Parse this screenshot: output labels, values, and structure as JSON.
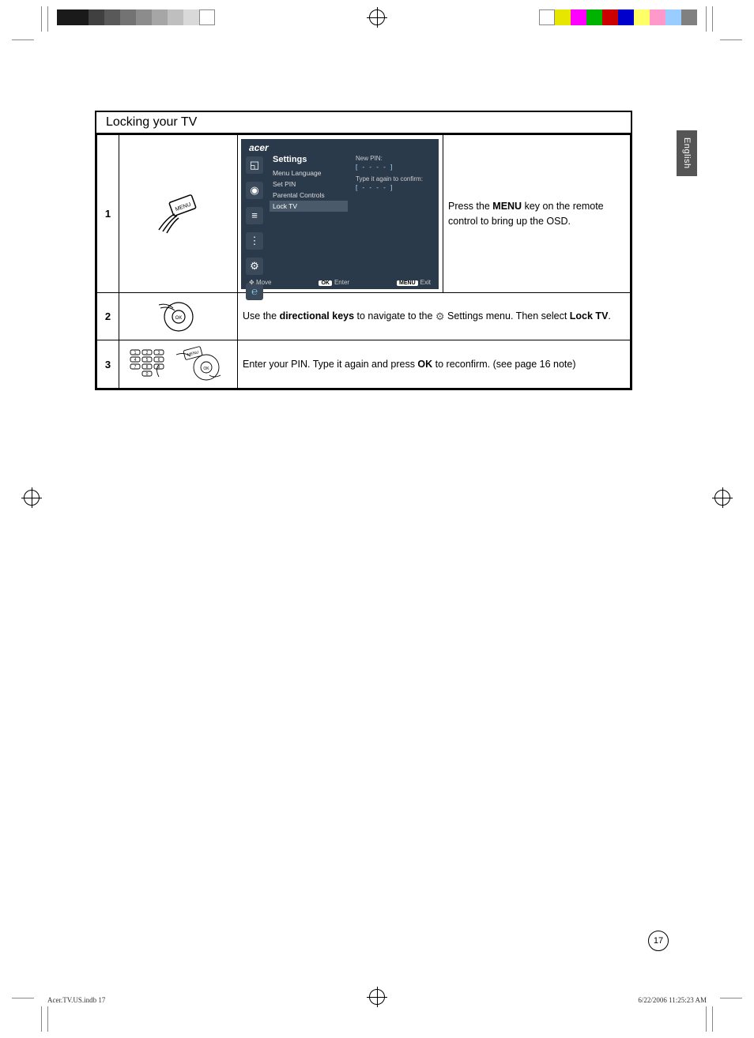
{
  "print_marks": {
    "grayscale_left": [
      "#1a1a1a",
      "#1a1a1a",
      "#404040",
      "#595959",
      "#737373",
      "#8c8c8c",
      "#a6a6a6",
      "#bfbfbf",
      "#d9d9d9",
      "#ffffff"
    ],
    "color_right": [
      "#ffffff",
      "#e6e600",
      "#ff00ff",
      "#00b300",
      "#cc0000",
      "#0000cc",
      "#ffff66",
      "#ff99cc",
      "#99ccff",
      "#808080"
    ]
  },
  "language_tab": "English",
  "section_title": "Locking your TV",
  "rows": [
    {
      "num": "1",
      "instruction_pre": "Press the ",
      "instruction_b1": "MENU",
      "instruction_post": " key on the remote control to bring up the OSD."
    },
    {
      "num": "2",
      "instruction_pre": "Use the ",
      "instruction_b1": "directional keys",
      "instruction_mid": " to navigate to the ",
      "instruction_post": " Settings menu. Then select ",
      "instruction_b2": "Lock TV",
      "instruction_end": "."
    },
    {
      "num": "3",
      "instruction_pre": "Enter your PIN. Type it again and press ",
      "instruction_b1": "OK",
      "instruction_post": " to reconfirm. (see page 16 note)"
    }
  ],
  "osd": {
    "logo": "acer",
    "menu_title": "Settings",
    "menu_items": [
      "Menu Language",
      "Set PIN",
      "Parental Controls",
      "Lock TV"
    ],
    "highlighted": "Lock TV",
    "right_panel": {
      "new_pin_label": "New PIN:",
      "pin_placeholder": "[  -   -   -   -  ]",
      "confirm_label": "Type it again to confirm:"
    },
    "footer": {
      "move": "Move",
      "enter": "Enter",
      "exit": "Exit",
      "ok_badge": "OK",
      "menu_badge": "MENU"
    },
    "colors": {
      "bg": "#2b3a4a",
      "sidebar_icon": "#3a4a5a",
      "highlight": "#4a5a6a",
      "text": "#ffffff",
      "accent": "#a8e0ff"
    }
  },
  "page_number": "17",
  "footer_left": "Acer.TV.US.indb   17",
  "footer_right": "6/22/2006   11:25:23 AM"
}
